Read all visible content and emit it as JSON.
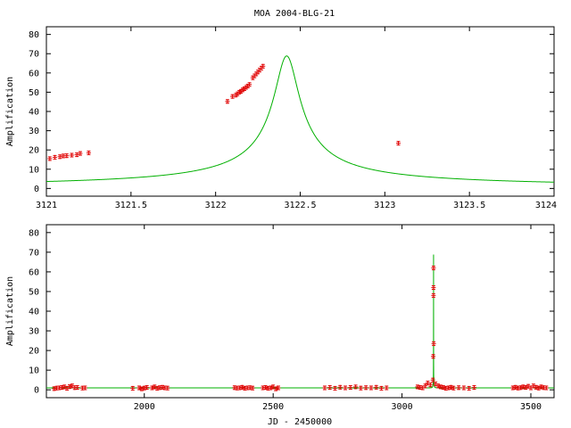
{
  "title": "MOA 2004-BLG-21",
  "colors": {
    "model": "#00b000",
    "data": "#e00000",
    "frame": "#000000"
  },
  "chart_data": [
    {
      "type": "scatter",
      "title": "MOA 2004-BLG-21",
      "xlabel": "",
      "ylabel": "Amplification",
      "xlim": [
        3121,
        3124
      ],
      "ylim": [
        -4,
        84
      ],
      "xticks": [
        3121,
        3121.5,
        3122,
        3122.5,
        3123,
        3123.5,
        3124
      ],
      "xtick_labels": [
        "3121",
        "3121.5",
        "3122",
        "3122.5",
        "3123",
        "3123.5",
        "3124"
      ],
      "yticks": [
        0,
        10,
        20,
        30,
        40,
        50,
        60,
        70,
        80
      ],
      "ytick_labels": [
        "0",
        "10",
        "20",
        "30",
        "40",
        "50",
        "60",
        "70",
        "80"
      ],
      "model": {
        "t0": 3122.42,
        "u0": 0.01453,
        "tE": 5.0
      },
      "series": [
        {
          "x": [
            3121.02,
            3121.05,
            3121.08,
            3121.1,
            3121.12,
            3121.15,
            3121.18,
            3121.2,
            3121.25,
            3122.07,
            3122.1,
            3122.12,
            3122.13,
            3122.14,
            3122.15,
            3122.16,
            3122.17,
            3122.18,
            3122.19,
            3122.2,
            3122.22,
            3122.23,
            3122.24,
            3122.25,
            3122.26,
            3122.27,
            3122.28,
            3123.08
          ],
          "y": [
            15.5,
            16.2,
            16.5,
            16.9,
            17.0,
            17.3,
            17.5,
            18.2,
            18.5,
            45.2,
            47.8,
            48.5,
            49.2,
            50.0,
            50.5,
            51.2,
            51.8,
            52.5,
            53.2,
            54.0,
            57.5,
            58.5,
            59.5,
            60.5,
            61.5,
            62.5,
            63.5,
            23.5
          ]
        }
      ]
    },
    {
      "type": "scatter",
      "title": "",
      "xlabel": "JD - 2450000",
      "ylabel": "Amplification",
      "xlim": [
        1620,
        3590
      ],
      "ylim": [
        -4,
        84
      ],
      "xticks": [
        2000,
        2500,
        3000,
        3500
      ],
      "xtick_labels": [
        "2000",
        "2500",
        "3000",
        "3500"
      ],
      "yticks": [
        0,
        10,
        20,
        30,
        40,
        50,
        60,
        70,
        80
      ],
      "ytick_labels": [
        "0",
        "10",
        "20",
        "30",
        "40",
        "50",
        "60",
        "70",
        "80"
      ],
      "model": {
        "t0": 3122.42,
        "u0": 0.01453,
        "tE": 5.0
      },
      "series": [
        {
          "x": [
            1650,
            1660,
            1670,
            1680,
            1690,
            1700,
            1710,
            1720,
            1730,
            1740,
            1760,
            1770,
            1955,
            1980,
            1990,
            2000,
            2010,
            2030,
            2040,
            2050,
            2060,
            2070,
            2080,
            2090,
            2350,
            2360,
            2370,
            2380,
            2390,
            2400,
            2410,
            2420,
            2460,
            2470,
            2480,
            2490,
            2500,
            2510,
            2520,
            2700,
            2720,
            2740,
            2760,
            2780,
            2800,
            2820,
            2840,
            2860,
            2880,
            2900,
            2920,
            2940,
            3060,
            3070,
            3080,
            3090,
            3100,
            3110,
            3120,
            3121.1,
            3122.1,
            3122.2,
            3122.3,
            3123.1,
            3130,
            3140,
            3150,
            3160,
            3170,
            3180,
            3190,
            3200,
            3220,
            3240,
            3260,
            3280,
            3430,
            3440,
            3450,
            3460,
            3470,
            3480,
            3490,
            3500,
            3510,
            3520,
            3530,
            3540,
            3550,
            3560
          ],
          "y": [
            0.6,
            0.9,
            1.0,
            1.2,
            1.5,
            0.8,
            1.6,
            2.0,
            1.1,
            1.2,
            0.9,
            1.0,
            0.8,
            1.0,
            0.5,
            0.9,
            1.2,
            1.0,
            1.5,
            0.8,
            1.1,
            1.3,
            1.0,
            0.9,
            1.1,
            0.9,
            1.0,
            1.3,
            0.8,
            1.0,
            1.1,
            0.9,
            1.0,
            1.2,
            0.8,
            1.0,
            1.5,
            0.5,
            1.0,
            1.0,
            1.2,
            0.8,
            1.3,
            1.0,
            1.2,
            1.5,
            0.9,
            1.1,
            1.0,
            1.3,
            0.8,
            1.0,
            1.5,
            1.2,
            1.0,
            2.0,
            3.5,
            2.5,
            5.0,
            17.0,
            48.0,
            52.0,
            62.0,
            23.5,
            3.0,
            2.0,
            1.5,
            1.2,
            0.8,
            1.0,
            1.3,
            0.9,
            1.1,
            1.0,
            0.8,
            1.2,
            1.0,
            1.3,
            0.9,
            1.1,
            1.5,
            1.2,
            1.8,
            1.0,
            2.0,
            1.3,
            0.9,
            1.5,
            1.1,
            1.0
          ]
        }
      ]
    }
  ]
}
